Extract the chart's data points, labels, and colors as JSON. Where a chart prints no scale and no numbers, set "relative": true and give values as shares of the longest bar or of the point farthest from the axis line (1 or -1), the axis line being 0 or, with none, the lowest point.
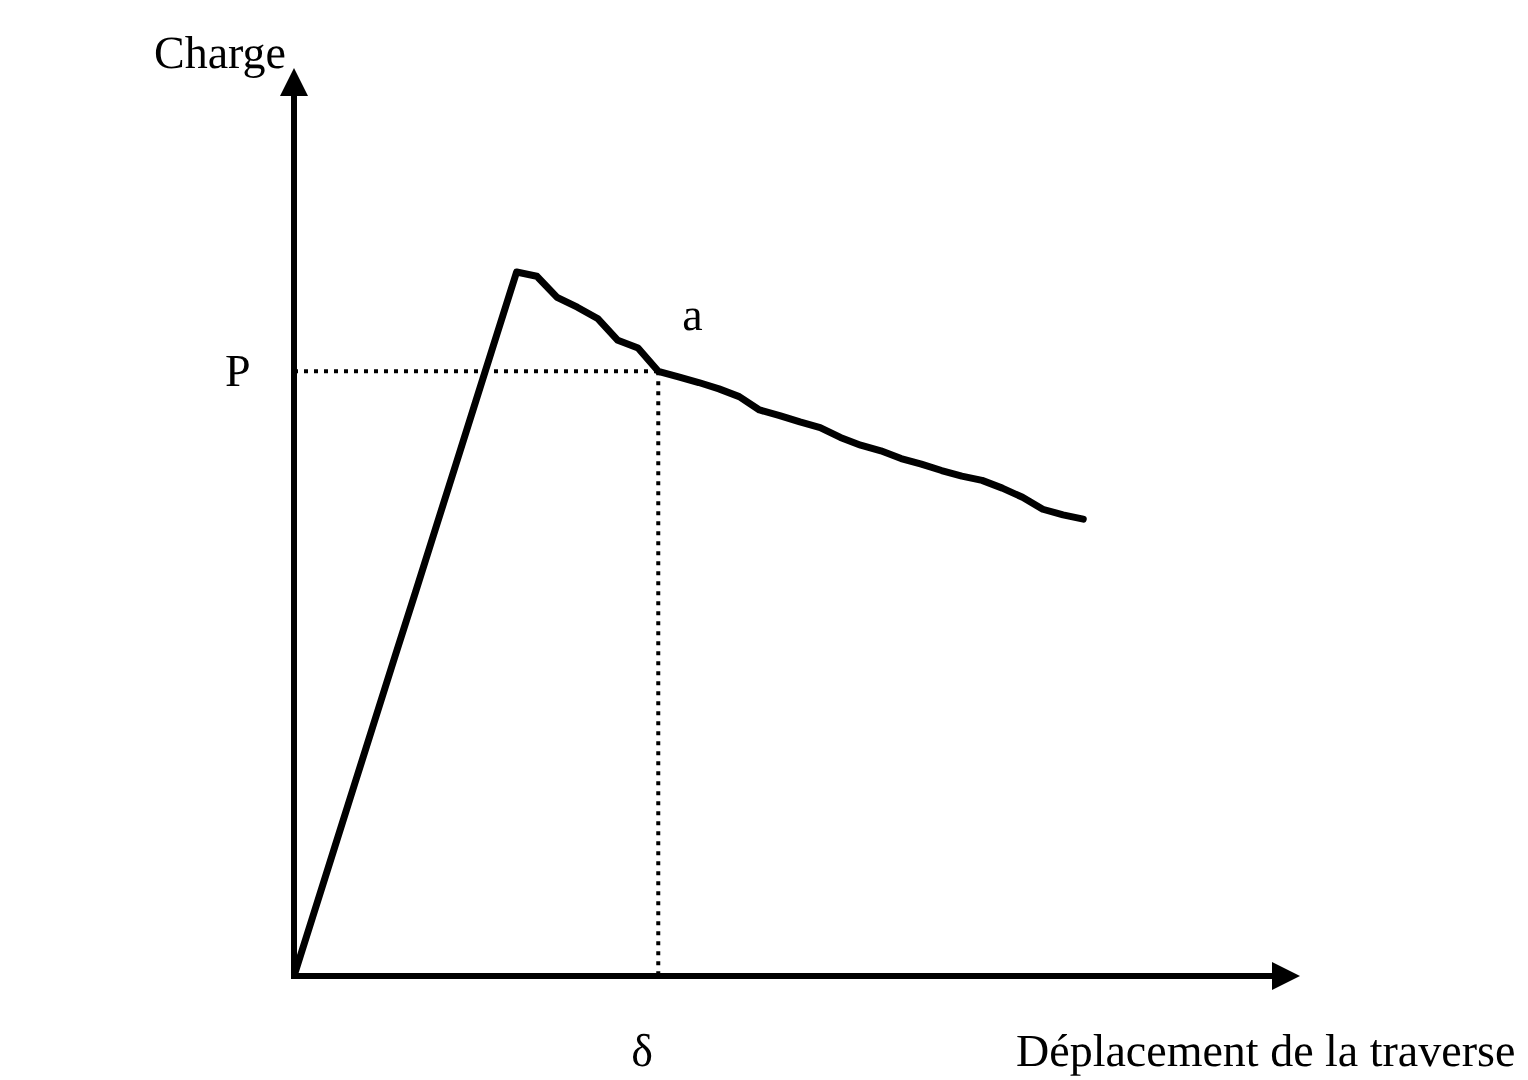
{
  "chart_data": {
    "type": "line",
    "xlabel": "Déplacement de la traverse",
    "ylabel": "Charge",
    "relative": true,
    "categories": [
      null,
      null,
      null,
      null,
      null,
      null,
      null,
      null,
      null,
      null,
      null,
      null,
      null,
      null,
      null,
      null,
      null,
      null,
      null,
      null,
      null,
      null,
      null,
      null,
      null,
      null,
      null,
      null,
      null,
      null,
      null,
      null,
      null,
      null,
      null,
      null,
      null,
      null,
      null,
      null
    ],
    "series": [
      {
        "color": "#000000",
        "values": [
          0,
          0.091,
          0.182,
          0.273,
          0.364,
          0.455,
          0.545,
          0.636,
          0.727,
          0.818,
          0.909,
          1,
          0.994,
          0.964,
          0.95,
          0.934,
          0.903,
          0.892,
          0.859,
          0.851,
          0.843,
          0.834,
          0.823,
          0.804,
          0.796,
          0.787,
          0.779,
          0.765,
          0.754,
          0.746,
          0.735,
          0.727,
          0.718,
          0.71,
          0.704,
          0.693,
          0.68,
          0.663,
          0.655,
          0.649
        ]
      }
    ],
    "ref_lines": [
      {
        "axis": "y",
        "value": 0.859,
        "label": "P",
        "line_style": "dotted",
        "color": "#000000"
      }
    ],
    "annotations": [
      {
        "text": "a",
        "y": 0.859
      },
      "δ"
    ],
    "grid": false,
    "legend": false,
    "marker": "none",
    "line_style": "solid"
  }
}
